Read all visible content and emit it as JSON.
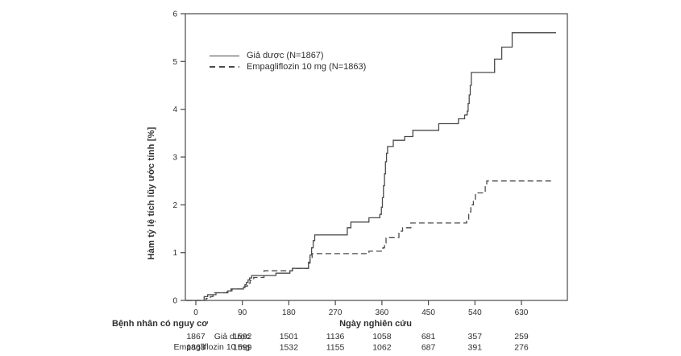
{
  "chart_data": {
    "type": "line",
    "subtype": "cumulative-incidence-step",
    "title": "",
    "xlabel": "Ngày nghiên cứu",
    "ylabel": "Hàm tỷ lệ tích lũy ước tính [%]",
    "xlim": [
      -20,
      720
    ],
    "ylim": [
      0,
      6
    ],
    "x_ticks": [
      0,
      90,
      180,
      270,
      360,
      450,
      540,
      630
    ],
    "y_ticks": [
      0,
      1,
      2,
      3,
      4,
      5,
      6
    ],
    "grid": false,
    "legend_position": "upper-left-inside",
    "series": [
      {
        "name": "Giả dược (N=1867)",
        "line_style": "solid",
        "color": "#4a4a4a",
        "points": [
          [
            0,
            0
          ],
          [
            16,
            0.08
          ],
          [
            23,
            0.12
          ],
          [
            39,
            0.16
          ],
          [
            62,
            0.2
          ],
          [
            70,
            0.24
          ],
          [
            92,
            0.28
          ],
          [
            95,
            0.33
          ],
          [
            98,
            0.38
          ],
          [
            101,
            0.43
          ],
          [
            104,
            0.47
          ],
          [
            108,
            0.52
          ],
          [
            155,
            0.57
          ],
          [
            182,
            0.62
          ],
          [
            187,
            0.67
          ],
          [
            218,
            0.8
          ],
          [
            221,
            0.95
          ],
          [
            224,
            1.1
          ],
          [
            227,
            1.25
          ],
          [
            230,
            1.37
          ],
          [
            293,
            1.52
          ],
          [
            300,
            1.64
          ],
          [
            335,
            1.73
          ],
          [
            356,
            1.8
          ],
          [
            359,
            1.95
          ],
          [
            361,
            2.15
          ],
          [
            363,
            2.4
          ],
          [
            365,
            2.65
          ],
          [
            367,
            2.9
          ],
          [
            369,
            3.08
          ],
          [
            371,
            3.22
          ],
          [
            382,
            3.35
          ],
          [
            404,
            3.43
          ],
          [
            420,
            3.56
          ],
          [
            470,
            3.7
          ],
          [
            508,
            3.8
          ],
          [
            520,
            3.88
          ],
          [
            525,
            3.96
          ],
          [
            527,
            4.12
          ],
          [
            529,
            4.3
          ],
          [
            531,
            4.5
          ],
          [
            533,
            4.77
          ],
          [
            578,
            5.05
          ],
          [
            592,
            5.3
          ],
          [
            612,
            5.6
          ],
          [
            697,
            5.6
          ]
        ]
      },
      {
        "name": "Empagliflozin 10 mg (N=1863)",
        "line_style": "dashed",
        "color": "#4a4a4a",
        "points": [
          [
            0,
            0
          ],
          [
            20,
            0.04
          ],
          [
            28,
            0.08
          ],
          [
            33,
            0.16
          ],
          [
            60,
            0.2
          ],
          [
            68,
            0.24
          ],
          [
            95,
            0.3
          ],
          [
            100,
            0.36
          ],
          [
            105,
            0.42
          ],
          [
            112,
            0.48
          ],
          [
            132,
            0.62
          ],
          [
            187,
            0.67
          ],
          [
            218,
            0.78
          ],
          [
            221,
            0.88
          ],
          [
            225,
            0.98
          ],
          [
            335,
            1.03
          ],
          [
            362,
            1.1
          ],
          [
            365,
            1.2
          ],
          [
            368,
            1.32
          ],
          [
            393,
            1.45
          ],
          [
            400,
            1.52
          ],
          [
            416,
            1.62
          ],
          [
            524,
            1.69
          ],
          [
            528,
            1.85
          ],
          [
            532,
            2.0
          ],
          [
            537,
            2.12
          ],
          [
            541,
            2.25
          ],
          [
            560,
            2.4
          ],
          [
            563,
            2.5
          ],
          [
            690,
            2.5
          ]
        ]
      }
    ]
  },
  "risk_table": {
    "header": "Bệnh nhân có nguy cơ",
    "x_axis_title": "Ngày nghiên cứu",
    "columns": [
      0,
      90,
      180,
      270,
      360,
      450,
      540,
      630
    ],
    "rows": [
      {
        "label": "Giả dược",
        "values": [
          "1867",
          "1592",
          "1501",
          "1136",
          "1058",
          "681",
          "357",
          "259"
        ]
      },
      {
        "label": "Empagliflozin 10 mg",
        "values": [
          "1863",
          "1599",
          "1532",
          "1155",
          "1062",
          "687",
          "391",
          "276"
        ]
      }
    ]
  },
  "colors": {
    "line": "#4a4a4a",
    "text": "#2f2f2f",
    "background": "#ffffff"
  }
}
